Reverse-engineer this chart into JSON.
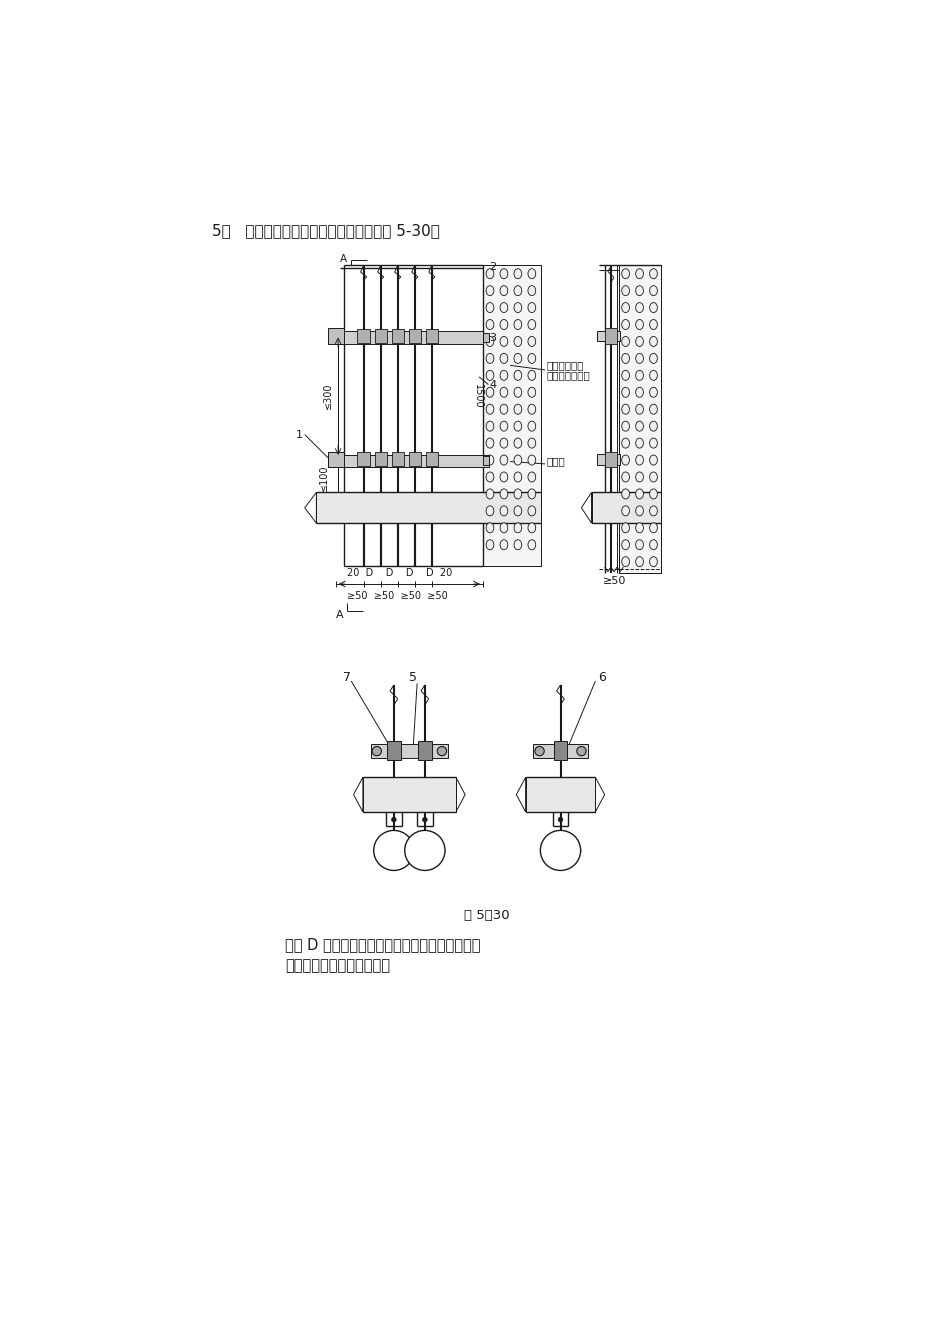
{
  "bg_color": "#ffffff",
  "header_text": "5、   电气坡井内电缆配线的垂直安装见图 5-30。",
  "fig_caption": "图 5－30",
  "desc_line1": "图中 D 表示保护管外径。当电缆根数较多或规格",
  "desc_line2": "较大时，可使用角锂支架。",
  "label2": "2",
  "label3": "3",
  "label4": "4",
  "label1": "1",
  "label5": "5",
  "label6": "6",
  "label7": "7",
  "ann1": "管口内封堵防",
  "ann2": "火堵料或石棉绳",
  "ann3": "混凝土",
  "dim1500": "1500",
  "dim300": "300",
  "dim100": "100",
  "dim20_D": "20  D    D    D    D  20",
  "spacing": "≥50  ≥50  ≥50  ≥50",
  "ge50": "≥50"
}
